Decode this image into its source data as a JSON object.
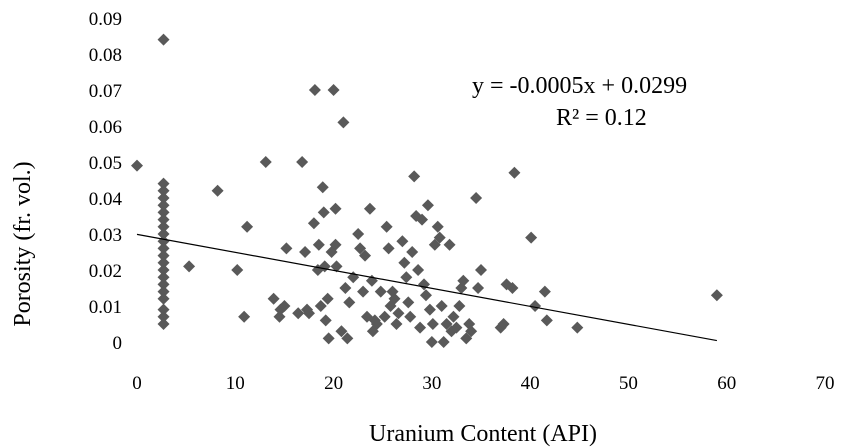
{
  "chart_data": {
    "type": "scatter",
    "title": "",
    "xlabel": "Uranium Content (API)",
    "ylabel": "Porosity (fr. vol.)",
    "xlim": [
      0,
      70
    ],
    "ylim": [
      0,
      0.09
    ],
    "xticks": [
      0,
      10,
      20,
      30,
      40,
      50,
      60,
      70
    ],
    "yticks": [
      "0",
      "0.01",
      "0.02",
      "0.03",
      "0.04",
      "0.05",
      "0.06",
      "0.07",
      "0.08",
      "0.09"
    ],
    "grid": false,
    "legend": "none",
    "marker": "diamond",
    "marker_color": "#595959",
    "trendline": {
      "slope": -0.0005,
      "intercept": 0.0299,
      "x_range": [
        0,
        59
      ],
      "equation": "y = -0.0005x + 0.0299",
      "r2_label": "R² = 0.12",
      "color": "#000000"
    },
    "points": [
      [
        0,
        0.049
      ],
      [
        2.7,
        0.084
      ],
      [
        2.7,
        0.044
      ],
      [
        2.7,
        0.042
      ],
      [
        2.7,
        0.04
      ],
      [
        2.7,
        0.038
      ],
      [
        2.7,
        0.036
      ],
      [
        2.7,
        0.034
      ],
      [
        2.7,
        0.032
      ],
      [
        2.7,
        0.03
      ],
      [
        2.7,
        0.028
      ],
      [
        2.7,
        0.026
      ],
      [
        2.7,
        0.024
      ],
      [
        2.7,
        0.022
      ],
      [
        2.7,
        0.02
      ],
      [
        2.7,
        0.018
      ],
      [
        2.7,
        0.016
      ],
      [
        2.7,
        0.014
      ],
      [
        2.7,
        0.012
      ],
      [
        2.7,
        0.009
      ],
      [
        2.7,
        0.007
      ],
      [
        2.7,
        0.005
      ],
      [
        5.3,
        0.021
      ],
      [
        8.2,
        0.042
      ],
      [
        10.2,
        0.02
      ],
      [
        10.9,
        0.007
      ],
      [
        11.2,
        0.032
      ],
      [
        13.1,
        0.05
      ],
      [
        13.9,
        0.012
      ],
      [
        14.5,
        0.007
      ],
      [
        14.6,
        0.009
      ],
      [
        15.0,
        0.01
      ],
      [
        15.2,
        0.026
      ],
      [
        16.4,
        0.008
      ],
      [
        16.8,
        0.05
      ],
      [
        17.1,
        0.025
      ],
      [
        17.3,
        0.009
      ],
      [
        17.5,
        0.008
      ],
      [
        18.0,
        0.033
      ],
      [
        18.1,
        0.07
      ],
      [
        18.4,
        0.02
      ],
      [
        18.5,
        0.027
      ],
      [
        18.7,
        0.01
      ],
      [
        18.9,
        0.043
      ],
      [
        19.0,
        0.036
      ],
      [
        19.1,
        0.021
      ],
      [
        19.2,
        0.006
      ],
      [
        19.4,
        0.012
      ],
      [
        19.5,
        0.001
      ],
      [
        19.8,
        0.025
      ],
      [
        20.0,
        0.07
      ],
      [
        20.2,
        0.037
      ],
      [
        20.2,
        0.027
      ],
      [
        20.3,
        0.021
      ],
      [
        20.8,
        0.003
      ],
      [
        21.0,
        0.061
      ],
      [
        21.2,
        0.015
      ],
      [
        21.4,
        0.001
      ],
      [
        21.6,
        0.011
      ],
      [
        22.0,
        0.018
      ],
      [
        22.5,
        0.03
      ],
      [
        22.7,
        0.026
      ],
      [
        23.0,
        0.014
      ],
      [
        23.2,
        0.024
      ],
      [
        23.4,
        0.007
      ],
      [
        23.7,
        0.037
      ],
      [
        23.9,
        0.017
      ],
      [
        24.0,
        0.003
      ],
      [
        24.2,
        0.006
      ],
      [
        24.4,
        0.005
      ],
      [
        24.8,
        0.014
      ],
      [
        25.2,
        0.007
      ],
      [
        25.4,
        0.032
      ],
      [
        25.6,
        0.026
      ],
      [
        25.8,
        0.01
      ],
      [
        26.0,
        0.014
      ],
      [
        26.2,
        0.012
      ],
      [
        26.4,
        0.005
      ],
      [
        26.6,
        0.008
      ],
      [
        27.0,
        0.028
      ],
      [
        27.2,
        0.022
      ],
      [
        27.4,
        0.018
      ],
      [
        27.6,
        0.011
      ],
      [
        27.8,
        0.007
      ],
      [
        28.0,
        0.025
      ],
      [
        28.2,
        0.046
      ],
      [
        28.4,
        0.035
      ],
      [
        28.6,
        0.02
      ],
      [
        28.8,
        0.004
      ],
      [
        29.0,
        0.034
      ],
      [
        29.2,
        0.016
      ],
      [
        29.4,
        0.013
      ],
      [
        29.6,
        0.038
      ],
      [
        29.8,
        0.009
      ],
      [
        30.0,
        0.0
      ],
      [
        30.1,
        0.005
      ],
      [
        30.3,
        0.027
      ],
      [
        30.6,
        0.032
      ],
      [
        30.8,
        0.029
      ],
      [
        31.0,
        0.01
      ],
      [
        31.2,
        0.0
      ],
      [
        31.5,
        0.005
      ],
      [
        31.8,
        0.027
      ],
      [
        32.0,
        0.003
      ],
      [
        32.2,
        0.007
      ],
      [
        32.5,
        0.004
      ],
      [
        32.8,
        0.01
      ],
      [
        33.0,
        0.015
      ],
      [
        33.2,
        0.017
      ],
      [
        33.5,
        0.001
      ],
      [
        33.8,
        0.005
      ],
      [
        34.0,
        0.003
      ],
      [
        34.5,
        0.04
      ],
      [
        34.7,
        0.015
      ],
      [
        35.0,
        0.02
      ],
      [
        37.0,
        0.004
      ],
      [
        37.3,
        0.005
      ],
      [
        37.6,
        0.016
      ],
      [
        38.2,
        0.015
      ],
      [
        38.4,
        0.047
      ],
      [
        40.1,
        0.029
      ],
      [
        40.5,
        0.01
      ],
      [
        41.5,
        0.014
      ],
      [
        41.7,
        0.006
      ],
      [
        44.8,
        0.004
      ],
      [
        59.0,
        0.013
      ]
    ]
  }
}
